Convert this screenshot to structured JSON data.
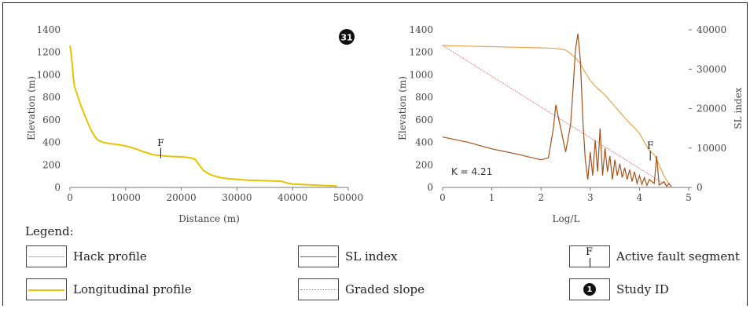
{
  "colors": {
    "longitudinal": "#e6c300",
    "hack": "#e8a34e",
    "sl_index": "#a3521a",
    "graded": "#d46a6a",
    "axis": "#777777",
    "study_bg": "#111111"
  },
  "legend": {
    "title": "Legend:",
    "items": {
      "hack": "Hack profile",
      "longitudinal": "Longitudinal profile",
      "sl_index": "SL index",
      "graded": "Graded slope",
      "fault": "Active fault segment",
      "study": "Study ID"
    },
    "fault_letter": "F",
    "study_number": "1"
  },
  "chart_data": [
    {
      "type": "line",
      "id": "longitudinal-profile",
      "xlabel": "Distance (m)",
      "ylabel": "Elevation (m)",
      "xlim": [
        0,
        50000
      ],
      "ylim": [
        0,
        1400
      ],
      "x_ticks": [
        "0",
        "10000",
        "20000",
        "30000",
        "40000",
        "50000"
      ],
      "y_ticks": [
        "0",
        "200",
        "400",
        "600",
        "800",
        "1000",
        "1200",
        "1400"
      ],
      "study_id": "31",
      "fault_marker": {
        "label": "F",
        "x": 16300,
        "y": 280
      },
      "series": [
        {
          "points": [
            [
              0,
              1260
            ],
            [
              200,
              1200
            ],
            [
              400,
              1100
            ],
            [
              600,
              980
            ],
            [
              800,
              900
            ],
            [
              1200,
              840
            ],
            [
              1600,
              780
            ],
            [
              2000,
              720
            ],
            [
              2500,
              660
            ],
            [
              3000,
              600
            ],
            [
              3500,
              540
            ],
            [
              4000,
              490
            ],
            [
              4500,
              450
            ],
            [
              5000,
              420
            ],
            [
              6000,
              400
            ],
            [
              7000,
              390
            ],
            [
              8000,
              385
            ],
            [
              9000,
              378
            ],
            [
              10000,
              368
            ],
            [
              11000,
              355
            ],
            [
              12000,
              340
            ],
            [
              13000,
              320
            ],
            [
              14000,
              305
            ],
            [
              15000,
              290
            ],
            [
              16000,
              285
            ],
            [
              18000,
              275
            ],
            [
              20000,
              272
            ],
            [
              21500,
              265
            ],
            [
              22500,
              250
            ],
            [
              23000,
              215
            ],
            [
              24000,
              150
            ],
            [
              25000,
              120
            ],
            [
              26000,
              100
            ],
            [
              27000,
              88
            ],
            [
              28000,
              80
            ],
            [
              30000,
              72
            ],
            [
              32000,
              65
            ],
            [
              35000,
              60
            ],
            [
              38000,
              55
            ],
            [
              39000,
              40
            ],
            [
              40000,
              30
            ],
            [
              42000,
              25
            ],
            [
              45000,
              18
            ],
            [
              48000,
              12
            ]
          ]
        }
      ]
    },
    {
      "type": "line",
      "id": "hack-sl-profile",
      "xlabel": "Log/L",
      "ylabel": "Elevation (m)",
      "ylabel_right": "SL index",
      "xlim": [
        0,
        5
      ],
      "ylim": [
        0,
        1400
      ],
      "ylim_right": [
        0,
        40000
      ],
      "x_ticks": [
        "0",
        "1",
        "2",
        "3",
        "4",
        "5"
      ],
      "y_ticks": [
        "0",
        "200",
        "400",
        "600",
        "800",
        "1000",
        "1200",
        "1400"
      ],
      "y_ticks_right": [
        "0",
        "10000",
        "20000",
        "30000",
        "40000"
      ],
      "annotation": "K = 4.21",
      "fault_marker": {
        "label": "F",
        "x": 4.22,
        "y": 260
      },
      "series": [
        {
          "name": "Hack profile",
          "points": [
            [
              0,
              1260
            ],
            [
              0.5,
              1255
            ],
            [
              1,
              1250
            ],
            [
              1.5,
              1245
            ],
            [
              2,
              1240
            ],
            [
              2.3,
              1235
            ],
            [
              2.5,
              1220
            ],
            [
              2.6,
              1190
            ],
            [
              2.7,
              1150
            ],
            [
              2.8,
              1100
            ],
            [
              2.9,
              1020
            ],
            [
              3.0,
              950
            ],
            [
              3.1,
              900
            ],
            [
              3.2,
              860
            ],
            [
              3.3,
              820
            ],
            [
              3.4,
              770
            ],
            [
              3.5,
              720
            ],
            [
              3.6,
              670
            ],
            [
              3.7,
              620
            ],
            [
              3.8,
              570
            ],
            [
              3.9,
              530
            ],
            [
              4.0,
              480
            ],
            [
              4.1,
              400
            ],
            [
              4.2,
              330
            ],
            [
              4.3,
              290
            ],
            [
              4.4,
              200
            ],
            [
              4.5,
              100
            ],
            [
              4.6,
              30
            ],
            [
              4.65,
              10
            ]
          ]
        },
        {
          "name": "Graded slope",
          "points": [
            [
              0,
              1260
            ],
            [
              4.62,
              0
            ]
          ]
        },
        {
          "name": "SL index",
          "axis": "right",
          "points": [
            [
              0,
              12800
            ],
            [
              0.5,
              11500
            ],
            [
              1,
              9800
            ],
            [
              1.5,
              8500
            ],
            [
              2,
              7000
            ],
            [
              2.15,
              7500
            ],
            [
              2.25,
              15000
            ],
            [
              2.3,
              21000
            ],
            [
              2.4,
              15000
            ],
            [
              2.5,
              9000
            ],
            [
              2.6,
              16000
            ],
            [
              2.65,
              25000
            ],
            [
              2.7,
              35000
            ],
            [
              2.75,
              39000
            ],
            [
              2.8,
              32000
            ],
            [
              2.85,
              17000
            ],
            [
              2.9,
              7000
            ],
            [
              2.95,
              2000
            ],
            [
              3.0,
              9000
            ],
            [
              3.05,
              3000
            ],
            [
              3.1,
              12000
            ],
            [
              3.15,
              4000
            ],
            [
              3.2,
              15000
            ],
            [
              3.25,
              3000
            ],
            [
              3.3,
              10000
            ],
            [
              3.35,
              4000
            ],
            [
              3.4,
              8000
            ],
            [
              3.45,
              2000
            ],
            [
              3.5,
              7000
            ],
            [
              3.55,
              3000
            ],
            [
              3.6,
              6000
            ],
            [
              3.65,
              2500
            ],
            [
              3.7,
              5000
            ],
            [
              3.75,
              2000
            ],
            [
              3.8,
              4500
            ],
            [
              3.85,
              1500
            ],
            [
              3.9,
              4000
            ],
            [
              3.95,
              1000
            ],
            [
              4.0,
              3000
            ],
            [
              4.05,
              800
            ],
            [
              4.1,
              2500
            ],
            [
              4.15,
              500
            ],
            [
              4.2,
              2000
            ],
            [
              4.3,
              1000
            ],
            [
              4.35,
              8000
            ],
            [
              4.4,
              600
            ],
            [
              4.5,
              1500
            ],
            [
              4.55,
              300
            ],
            [
              4.6,
              1000
            ],
            [
              4.65,
              200
            ]
          ]
        }
      ]
    }
  ]
}
